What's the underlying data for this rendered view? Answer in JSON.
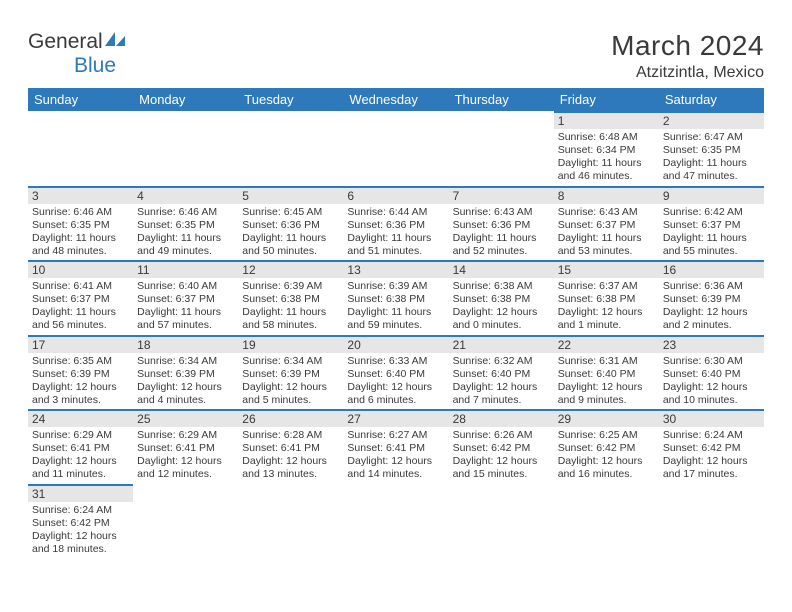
{
  "logo": {
    "name_a": "General",
    "name_b": "Blue"
  },
  "title": "March 2024",
  "location": "Atzitzintla, Mexico",
  "colors": {
    "header_bg": "#2d79bb",
    "header_fg": "#ffffff",
    "bar_bg": "#e6e6e6",
    "rule": "#2d79bb",
    "text": "#3a3a3a"
  },
  "day_names": [
    "Sunday",
    "Monday",
    "Tuesday",
    "Wednesday",
    "Thursday",
    "Friday",
    "Saturday"
  ],
  "weeks": [
    [
      {
        "n": "",
        "sr": "",
        "ss": "",
        "dl": ""
      },
      {
        "n": "",
        "sr": "",
        "ss": "",
        "dl": ""
      },
      {
        "n": "",
        "sr": "",
        "ss": "",
        "dl": ""
      },
      {
        "n": "",
        "sr": "",
        "ss": "",
        "dl": ""
      },
      {
        "n": "",
        "sr": "",
        "ss": "",
        "dl": ""
      },
      {
        "n": "1",
        "sr": "Sunrise: 6:48 AM",
        "ss": "Sunset: 6:34 PM",
        "dl": "Daylight: 11 hours and 46 minutes."
      },
      {
        "n": "2",
        "sr": "Sunrise: 6:47 AM",
        "ss": "Sunset: 6:35 PM",
        "dl": "Daylight: 11 hours and 47 minutes."
      }
    ],
    [
      {
        "n": "3",
        "sr": "Sunrise: 6:46 AM",
        "ss": "Sunset: 6:35 PM",
        "dl": "Daylight: 11 hours and 48 minutes."
      },
      {
        "n": "4",
        "sr": "Sunrise: 6:46 AM",
        "ss": "Sunset: 6:35 PM",
        "dl": "Daylight: 11 hours and 49 minutes."
      },
      {
        "n": "5",
        "sr": "Sunrise: 6:45 AM",
        "ss": "Sunset: 6:36 PM",
        "dl": "Daylight: 11 hours and 50 minutes."
      },
      {
        "n": "6",
        "sr": "Sunrise: 6:44 AM",
        "ss": "Sunset: 6:36 PM",
        "dl": "Daylight: 11 hours and 51 minutes."
      },
      {
        "n": "7",
        "sr": "Sunrise: 6:43 AM",
        "ss": "Sunset: 6:36 PM",
        "dl": "Daylight: 11 hours and 52 minutes."
      },
      {
        "n": "8",
        "sr": "Sunrise: 6:43 AM",
        "ss": "Sunset: 6:37 PM",
        "dl": "Daylight: 11 hours and 53 minutes."
      },
      {
        "n": "9",
        "sr": "Sunrise: 6:42 AM",
        "ss": "Sunset: 6:37 PM",
        "dl": "Daylight: 11 hours and 55 minutes."
      }
    ],
    [
      {
        "n": "10",
        "sr": "Sunrise: 6:41 AM",
        "ss": "Sunset: 6:37 PM",
        "dl": "Daylight: 11 hours and 56 minutes."
      },
      {
        "n": "11",
        "sr": "Sunrise: 6:40 AM",
        "ss": "Sunset: 6:37 PM",
        "dl": "Daylight: 11 hours and 57 minutes."
      },
      {
        "n": "12",
        "sr": "Sunrise: 6:39 AM",
        "ss": "Sunset: 6:38 PM",
        "dl": "Daylight: 11 hours and 58 minutes."
      },
      {
        "n": "13",
        "sr": "Sunrise: 6:39 AM",
        "ss": "Sunset: 6:38 PM",
        "dl": "Daylight: 11 hours and 59 minutes."
      },
      {
        "n": "14",
        "sr": "Sunrise: 6:38 AM",
        "ss": "Sunset: 6:38 PM",
        "dl": "Daylight: 12 hours and 0 minutes."
      },
      {
        "n": "15",
        "sr": "Sunrise: 6:37 AM",
        "ss": "Sunset: 6:38 PM",
        "dl": "Daylight: 12 hours and 1 minute."
      },
      {
        "n": "16",
        "sr": "Sunrise: 6:36 AM",
        "ss": "Sunset: 6:39 PM",
        "dl": "Daylight: 12 hours and 2 minutes."
      }
    ],
    [
      {
        "n": "17",
        "sr": "Sunrise: 6:35 AM",
        "ss": "Sunset: 6:39 PM",
        "dl": "Daylight: 12 hours and 3 minutes."
      },
      {
        "n": "18",
        "sr": "Sunrise: 6:34 AM",
        "ss": "Sunset: 6:39 PM",
        "dl": "Daylight: 12 hours and 4 minutes."
      },
      {
        "n": "19",
        "sr": "Sunrise: 6:34 AM",
        "ss": "Sunset: 6:39 PM",
        "dl": "Daylight: 12 hours and 5 minutes."
      },
      {
        "n": "20",
        "sr": "Sunrise: 6:33 AM",
        "ss": "Sunset: 6:40 PM",
        "dl": "Daylight: 12 hours and 6 minutes."
      },
      {
        "n": "21",
        "sr": "Sunrise: 6:32 AM",
        "ss": "Sunset: 6:40 PM",
        "dl": "Daylight: 12 hours and 7 minutes."
      },
      {
        "n": "22",
        "sr": "Sunrise: 6:31 AM",
        "ss": "Sunset: 6:40 PM",
        "dl": "Daylight: 12 hours and 9 minutes."
      },
      {
        "n": "23",
        "sr": "Sunrise: 6:30 AM",
        "ss": "Sunset: 6:40 PM",
        "dl": "Daylight: 12 hours and 10 minutes."
      }
    ],
    [
      {
        "n": "24",
        "sr": "Sunrise: 6:29 AM",
        "ss": "Sunset: 6:41 PM",
        "dl": "Daylight: 12 hours and 11 minutes."
      },
      {
        "n": "25",
        "sr": "Sunrise: 6:29 AM",
        "ss": "Sunset: 6:41 PM",
        "dl": "Daylight: 12 hours and 12 minutes."
      },
      {
        "n": "26",
        "sr": "Sunrise: 6:28 AM",
        "ss": "Sunset: 6:41 PM",
        "dl": "Daylight: 12 hours and 13 minutes."
      },
      {
        "n": "27",
        "sr": "Sunrise: 6:27 AM",
        "ss": "Sunset: 6:41 PM",
        "dl": "Daylight: 12 hours and 14 minutes."
      },
      {
        "n": "28",
        "sr": "Sunrise: 6:26 AM",
        "ss": "Sunset: 6:42 PM",
        "dl": "Daylight: 12 hours and 15 minutes."
      },
      {
        "n": "29",
        "sr": "Sunrise: 6:25 AM",
        "ss": "Sunset: 6:42 PM",
        "dl": "Daylight: 12 hours and 16 minutes."
      },
      {
        "n": "30",
        "sr": "Sunrise: 6:24 AM",
        "ss": "Sunset: 6:42 PM",
        "dl": "Daylight: 12 hours and 17 minutes."
      }
    ],
    [
      {
        "n": "31",
        "sr": "Sunrise: 6:24 AM",
        "ss": "Sunset: 6:42 PM",
        "dl": "Daylight: 12 hours and 18 minutes."
      },
      {
        "n": "",
        "sr": "",
        "ss": "",
        "dl": ""
      },
      {
        "n": "",
        "sr": "",
        "ss": "",
        "dl": ""
      },
      {
        "n": "",
        "sr": "",
        "ss": "",
        "dl": ""
      },
      {
        "n": "",
        "sr": "",
        "ss": "",
        "dl": ""
      },
      {
        "n": "",
        "sr": "",
        "ss": "",
        "dl": ""
      },
      {
        "n": "",
        "sr": "",
        "ss": "",
        "dl": ""
      }
    ]
  ]
}
